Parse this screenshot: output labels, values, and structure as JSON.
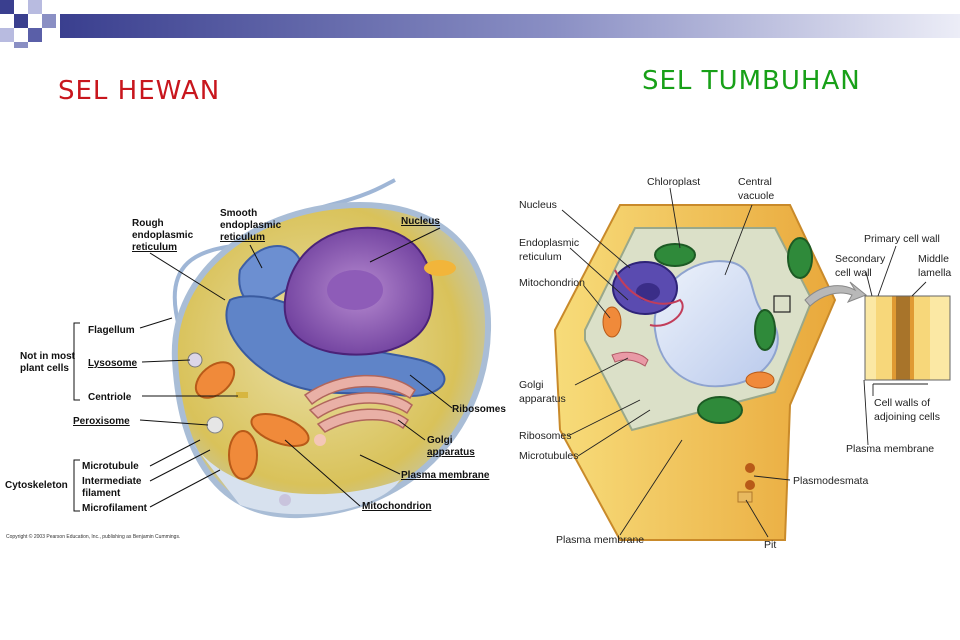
{
  "titles": {
    "animal": "SEL HEWAN",
    "plant": "SEL TUMBUHAN"
  },
  "animal_cell": {
    "labels": {
      "rough_er_1": "Rough",
      "rough_er_2": "endoplasmic",
      "rough_er_3": "reticulum",
      "smooth_er_1": "Smooth",
      "smooth_er_2": "endoplasmic",
      "smooth_er_3": "reticulum",
      "nucleus": "Nucleus",
      "flagellum": "Flagellum",
      "lysosome": "Lysosome",
      "centriole": "Centriole",
      "not_in_plants_1": "Not in most",
      "not_in_plants_2": "plant cells",
      "peroxisome": "Peroxisome",
      "ribosomes": "Ribosomes",
      "golgi_1": "Golgi",
      "golgi_2": "apparatus",
      "plasma_membrane": "Plasma membrane",
      "microtubule": "Microtubule",
      "intermediate_1": "Intermediate",
      "intermediate_2": "filament",
      "microfilament": "Microfilament",
      "cytoskeleton": "Cytoskeleton",
      "mitochondrion": "Mitochondrion"
    },
    "copyright": "Copyright © 2003 Pearson Education, Inc., publishing as Benjamin Cummings."
  },
  "plant_cell": {
    "labels": {
      "chloroplast": "Chloroplast",
      "central_vacuole_1": "Central",
      "central_vacuole_2": "vacuole",
      "nucleus": "Nucleus",
      "er_1": "Endoplasmic",
      "er_2": "reticulum",
      "mitochondrion": "Mitochondrion",
      "golgi_1": "Golgi",
      "golgi_2": "apparatus",
      "ribosomes": "Ribosomes",
      "microtubules": "Microtubules",
      "plasma_membrane_bottom": "Plasma membrane",
      "primary_wall": "Primary cell wall",
      "secondary_wall_1": "Secondary",
      "secondary_wall_2": "cell wall",
      "middle_lamella_1": "Middle",
      "middle_lamella_2": "lamella",
      "cell_walls_1": "Cell walls of",
      "cell_walls_2": "adjoining cells",
      "plasma_membrane_right": "Plasma membrane",
      "plasmodesmata": "Plasmodesmata",
      "pit": "Pit"
    }
  },
  "colors": {
    "animal_title": "#c8161d",
    "plant_title": "#18a018",
    "topbar_dark": "#3a3f8f",
    "topbar_light": "#c8cbe8"
  }
}
